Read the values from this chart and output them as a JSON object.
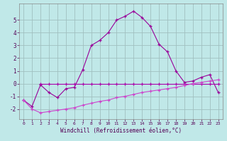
{
  "background_color": "#c0e8e8",
  "grid_color": "#a0c0c0",
  "line_color_main": "#990099",
  "line_color_flat": "#aa00aa",
  "line_color_low": "#cc44cc",
  "xlim": [
    -0.5,
    23.5
  ],
  "ylim": [
    -2.8,
    6.3
  ],
  "xlabel": "Windchill (Refroidissement éolien,°C)",
  "xticks": [
    0,
    1,
    2,
    3,
    4,
    5,
    6,
    7,
    8,
    9,
    10,
    11,
    12,
    13,
    14,
    15,
    16,
    17,
    18,
    19,
    20,
    21,
    22,
    23
  ],
  "yticks": [
    -2,
    -1,
    0,
    1,
    2,
    3,
    4,
    5
  ],
  "series1_x": [
    0,
    1,
    2,
    3,
    4,
    5,
    6,
    7,
    8,
    9,
    10,
    11,
    12,
    13,
    14,
    15,
    16,
    17,
    18,
    19,
    20,
    21,
    22,
    23
  ],
  "series1_y": [
    -1.3,
    -1.8,
    -0.1,
    -0.7,
    -1.1,
    -0.4,
    -0.3,
    1.1,
    3.0,
    3.4,
    4.0,
    5.0,
    5.3,
    5.7,
    5.2,
    4.5,
    3.1,
    2.5,
    1.0,
    0.1,
    0.2,
    0.5,
    0.7,
    -0.7
  ],
  "series2_x": [
    2,
    3,
    4,
    5,
    6,
    7,
    8,
    9,
    10,
    11,
    12,
    13,
    14,
    15,
    16,
    17,
    18,
    19,
    20,
    21,
    22,
    23
  ],
  "series2_y": [
    -0.05,
    -0.05,
    -0.05,
    -0.05,
    -0.05,
    -0.05,
    -0.05,
    -0.05,
    -0.05,
    -0.05,
    -0.05,
    -0.05,
    -0.05,
    -0.05,
    -0.05,
    -0.05,
    -0.05,
    -0.05,
    -0.05,
    -0.05,
    -0.05,
    -0.05
  ],
  "series3_x": [
    0,
    1,
    2,
    3,
    4,
    5,
    6,
    7,
    8,
    9,
    10,
    11,
    12,
    13,
    14,
    15,
    16,
    17,
    18,
    19,
    20,
    21,
    22,
    23
  ],
  "series3_y": [
    -1.3,
    -2.0,
    -2.3,
    -2.2,
    -2.1,
    -2.0,
    -1.9,
    -1.7,
    -1.55,
    -1.4,
    -1.3,
    -1.1,
    -1.0,
    -0.85,
    -0.7,
    -0.6,
    -0.5,
    -0.4,
    -0.3,
    -0.15,
    0.0,
    0.1,
    0.2,
    0.3
  ],
  "fig_width": 3.2,
  "fig_height": 2.0,
  "dpi": 100
}
